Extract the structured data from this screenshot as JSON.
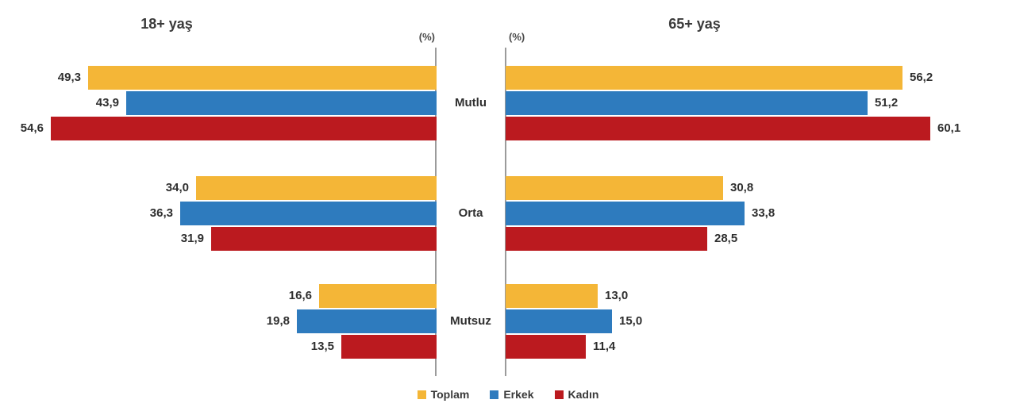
{
  "chart_data": {
    "type": "bar",
    "layout": "diverging-horizontal-two-panels",
    "categories": [
      "Mutlu",
      "Orta",
      "Mutsuz"
    ],
    "unit": "%",
    "grid": "off",
    "legend_position": "bottom-center",
    "panels": [
      {
        "title": "18+ yaş",
        "side": "left",
        "unit_label": "(%)",
        "xlim": [
          0,
          62
        ],
        "series": [
          {
            "name": "Toplam",
            "values": [
              49.3,
              34.0,
              16.6
            ],
            "labels": [
              "49,3",
              "34,0",
              "16,6"
            ]
          },
          {
            "name": "Erkek",
            "values": [
              43.9,
              36.3,
              19.8
            ],
            "labels": [
              "43,9",
              "36,3",
              "19,8"
            ]
          },
          {
            "name": "Kadın",
            "values": [
              54.6,
              31.9,
              13.5
            ],
            "labels": [
              "54,6",
              "31,9",
              "13,5"
            ]
          }
        ]
      },
      {
        "title": "65+ yaş",
        "side": "right",
        "unit_label": "(%)",
        "xlim": [
          0,
          62
        ],
        "series": [
          {
            "name": "Toplam",
            "values": [
              56.2,
              30.8,
              13.0
            ],
            "labels": [
              "56,2",
              "30,8",
              "13,0"
            ]
          },
          {
            "name": "Erkek",
            "values": [
              51.2,
              33.8,
              15.0
            ],
            "labels": [
              "51,2",
              "33,8",
              "15,0"
            ]
          },
          {
            "name": "Kadın",
            "values": [
              60.1,
              28.5,
              11.4
            ],
            "labels": [
              "60,1",
              "28,5",
              "11,4"
            ]
          }
        ]
      }
    ],
    "legend": [
      {
        "label": "Toplam",
        "color": "#F4B637"
      },
      {
        "label": "Erkek",
        "color": "#2E7BBE"
      },
      {
        "label": "Kadın",
        "color": "#BB1A1F"
      }
    ],
    "colors": {
      "Toplam": "#F4B637",
      "Erkek": "#2E7BBE",
      "Kadın": "#BB1A1F"
    }
  }
}
